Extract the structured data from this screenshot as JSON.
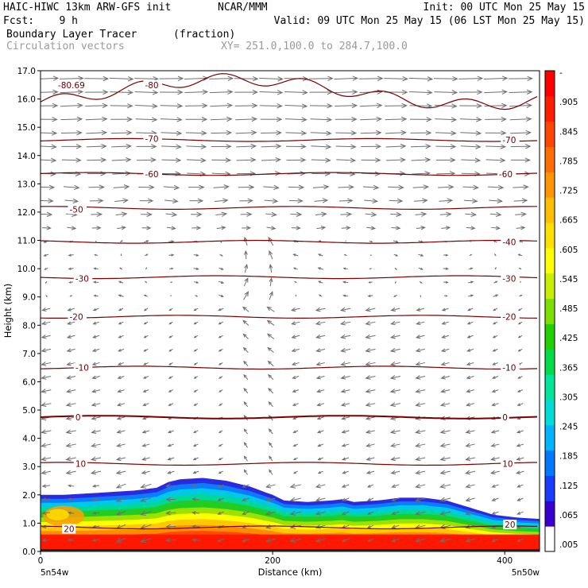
{
  "header": {
    "line1_left": "HAIC-HIWC 13km ARW-GFS init",
    "line1_center": "NCAR/MMM",
    "line1_right": "Init: 00 UTC Mon 25 May 15",
    "line2_left": "Fcst:    9 h",
    "line2_right": "Valid: 09 UTC Mon 25 May 15 (06 LST Mon 25 May 15)",
    "field_name": "Boundary Layer Tracer",
    "field_units": "(fraction)",
    "overlay_name": "Circulation vectors",
    "xsec_range": "XY= 251.0,100.0 to 284.7,100.0"
  },
  "chart_data": {
    "type": "cross-section",
    "xlabel": "Distance (km)",
    "ylabel": "Height (km)",
    "xlim": [
      0,
      430
    ],
    "ylim": [
      0,
      17
    ],
    "x_ticks": [
      0,
      200,
      400
    ],
    "y_ticks": [
      "0.0",
      "1.0",
      "2.0",
      "3.0",
      "4.0",
      "5.0",
      "6.0",
      "7.0",
      "8.0",
      "9.0",
      "10.0",
      "11.0",
      "12.0",
      "13.0",
      "14.0",
      "15.0",
      "16.0",
      "17.0"
    ],
    "x_endpoint_labels": {
      "left": "5n54w",
      "right": "5n50w"
    },
    "temperature_contours": [
      {
        "t": 20,
        "z": 0.85
      },
      {
        "t": 10,
        "z": 3.1
      },
      {
        "t": 0,
        "z": 4.75
      },
      {
        "t": -10,
        "z": 6.5
      },
      {
        "t": -20,
        "z": 8.3
      },
      {
        "t": -30,
        "z": 9.7
      },
      {
        "t": -40,
        "z": 10.95
      },
      {
        "t": -50,
        "z": 12.15
      },
      {
        "t": -60,
        "z": 13.35
      },
      {
        "t": -70,
        "z": 14.55
      },
      {
        "t": -80,
        "z": 16.25
      }
    ],
    "contour_labels": [
      {
        "text": "20",
        "x": 20,
        "z": 0.8
      },
      {
        "text": "10",
        "x": 30,
        "z": 3.1
      },
      {
        "text": "0",
        "x": 30,
        "z": 4.75
      },
      {
        "text": "-10",
        "x": 30,
        "z": 6.5
      },
      {
        "text": "-20",
        "x": 25,
        "z": 8.3
      },
      {
        "text": "-30",
        "x": 30,
        "z": 9.65
      },
      {
        "text": "-50",
        "x": 25,
        "z": 12.1
      },
      {
        "text": "-60",
        "x": 90,
        "z": 13.35
      },
      {
        "text": "-70",
        "x": 90,
        "z": 14.6
      },
      {
        "text": "-80",
        "x": 90,
        "z": 16.5
      },
      {
        "text": "-80.69",
        "x": 15,
        "z": 16.5
      },
      {
        "text": "20",
        "x": 400,
        "z": 0.95
      },
      {
        "text": "10",
        "x": 398,
        "z": 3.1
      },
      {
        "text": "0",
        "x": 398,
        "z": 4.75
      },
      {
        "text": "-10",
        "x": 398,
        "z": 6.5
      },
      {
        "text": "-20",
        "x": 398,
        "z": 8.3
      },
      {
        "text": "-30",
        "x": 398,
        "z": 9.65
      },
      {
        "text": "-40",
        "x": 398,
        "z": 10.95
      },
      {
        "text": "-60",
        "x": 395,
        "z": 13.35
      },
      {
        "text": "-70",
        "x": 398,
        "z": 14.55
      }
    ],
    "tracer_top_km": [
      [
        0,
        2.0
      ],
      [
        20,
        2.0
      ],
      [
        40,
        2.05
      ],
      [
        60,
        2.1
      ],
      [
        80,
        2.15
      ],
      [
        100,
        2.25
      ],
      [
        110,
        2.45
      ],
      [
        120,
        2.55
      ],
      [
        140,
        2.6
      ],
      [
        160,
        2.5
      ],
      [
        180,
        2.3
      ],
      [
        200,
        2.0
      ],
      [
        210,
        1.8
      ],
      [
        230,
        1.75
      ],
      [
        250,
        1.8
      ],
      [
        260,
        1.85
      ],
      [
        270,
        1.75
      ],
      [
        290,
        1.8
      ],
      [
        310,
        1.9
      ],
      [
        330,
        1.9
      ],
      [
        350,
        1.8
      ],
      [
        370,
        1.55
      ],
      [
        390,
        1.3
      ],
      [
        410,
        1.2
      ],
      [
        430,
        1.15
      ]
    ],
    "colorbar": {
      "min": 0.005,
      "max": 1.0,
      "interval": 0.03,
      "labels": [
        ".005",
        ".065",
        ".125",
        ".185",
        ".245",
        ".305",
        ".365",
        ".425",
        ".485",
        ".545",
        ".605",
        ".665",
        ".725",
        ".785",
        ".845",
        ".905",
        "-"
      ]
    },
    "wind_vectors": "upper troposphere westerly (rightward), mid levels weak easterly with ascent near x=190 km, low levels easterly"
  }
}
